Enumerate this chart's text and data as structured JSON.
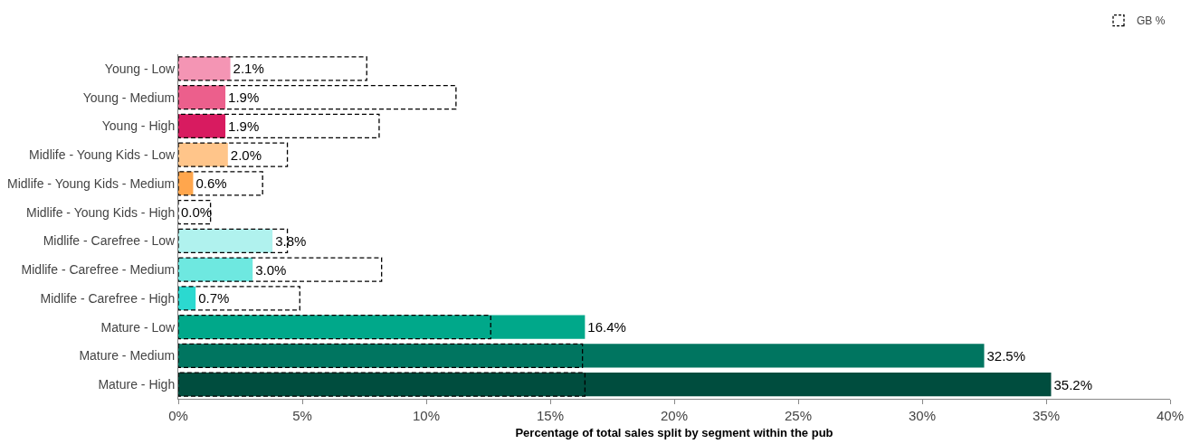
{
  "chart_data": {
    "type": "bar",
    "orientation": "horizontal",
    "xlabel": "Percentage of total sales split by segment within the pub",
    "categories": [
      "Young - Low",
      "Young - Medium",
      "Young - High",
      "Midlife - Young Kids - Low",
      "Midlife - Young Kids - Medium",
      "Midlife - Young Kids - High",
      "Midlife - Carefree - Low",
      "Midlife - Carefree - Medium",
      "Midlife - Carefree - High",
      "Mature - Low",
      "Mature - Medium",
      "Mature - High"
    ],
    "series": [
      {
        "colors": [
          "#f495b4",
          "#ec5f8c",
          "#d81b60",
          "#ffc58a",
          "#ffa64d",
          "#ff8c1a",
          "#b0f2ee",
          "#6ee8e0",
          "#2bd9d0",
          "#00a88a",
          "#007560",
          "#004d3e"
        ],
        "values": [
          2.1,
          1.9,
          1.9,
          2.0,
          0.6,
          0.0,
          3.8,
          3.0,
          0.7,
          16.4,
          32.5,
          35.2
        ],
        "value_labels": [
          "2.1%",
          "1.9%",
          "1.9%",
          "2.0%",
          "0.6%",
          "0.0%",
          "3.8%",
          "3.0%",
          "0.7%",
          "16.4%",
          "32.5%",
          "35.2%"
        ]
      },
      {
        "name": "GB %",
        "color": "#000000",
        "line_style": "dashed",
        "values": [
          7.6,
          11.2,
          8.1,
          4.4,
          3.4,
          1.3,
          4.4,
          8.2,
          4.9,
          12.6,
          16.3,
          16.4
        ]
      }
    ],
    "xlim": [
      0,
      40
    ],
    "xticks": [
      {
        "value": 0,
        "label": "0%"
      },
      {
        "value": 5,
        "label": "5%"
      },
      {
        "value": 10,
        "label": "10%"
      },
      {
        "value": 15,
        "label": "15%"
      },
      {
        "value": 20,
        "label": "20%"
      },
      {
        "value": 25,
        "label": "25%"
      },
      {
        "value": 30,
        "label": "30%"
      },
      {
        "value": 35,
        "label": "35%"
      },
      {
        "value": 40,
        "label": "40%"
      }
    ],
    "grid": false,
    "legend": "top right"
  }
}
